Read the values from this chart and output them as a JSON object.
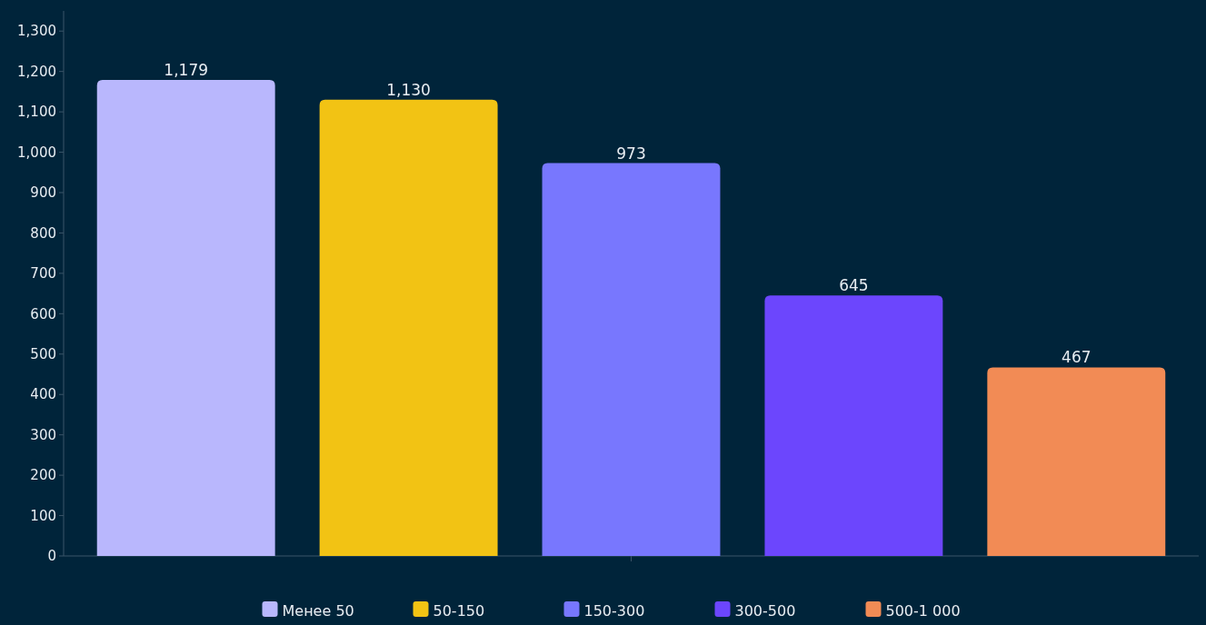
{
  "chart_data": {
    "type": "bar",
    "categories": [
      null
    ],
    "series": [
      {
        "name": "Менее 50",
        "color": "#b9b7fd",
        "values": [
          1179
        ],
        "value_labels": [
          "1,179"
        ]
      },
      {
        "name": "50-150",
        "color": "#f2c314",
        "values": [
          1130
        ],
        "value_labels": [
          "1,130"
        ]
      },
      {
        "name": "150-300",
        "color": "#7877fe",
        "values": [
          973
        ],
        "value_labels": [
          "973"
        ]
      },
      {
        "name": "300-500",
        "color": "#6c46fd",
        "values": [
          645
        ],
        "value_labels": [
          "645"
        ]
      },
      {
        "name": "500-1 000",
        "color": "#f28b55",
        "values": [
          467
        ],
        "value_labels": [
          "467"
        ]
      }
    ],
    "ylim": [
      0,
      1350
    ],
    "yticks": [
      0,
      100,
      200,
      300,
      400,
      500,
      600,
      700,
      800,
      900,
      {
        "value": 1000,
        "label": "1,000"
      },
      {
        "value": 1100,
        "label": "1,100"
      },
      {
        "value": 1200,
        "label": "1,200"
      },
      {
        "value": 1300,
        "label": "1,300"
      }
    ],
    "grid": false,
    "legend": "bottom"
  }
}
